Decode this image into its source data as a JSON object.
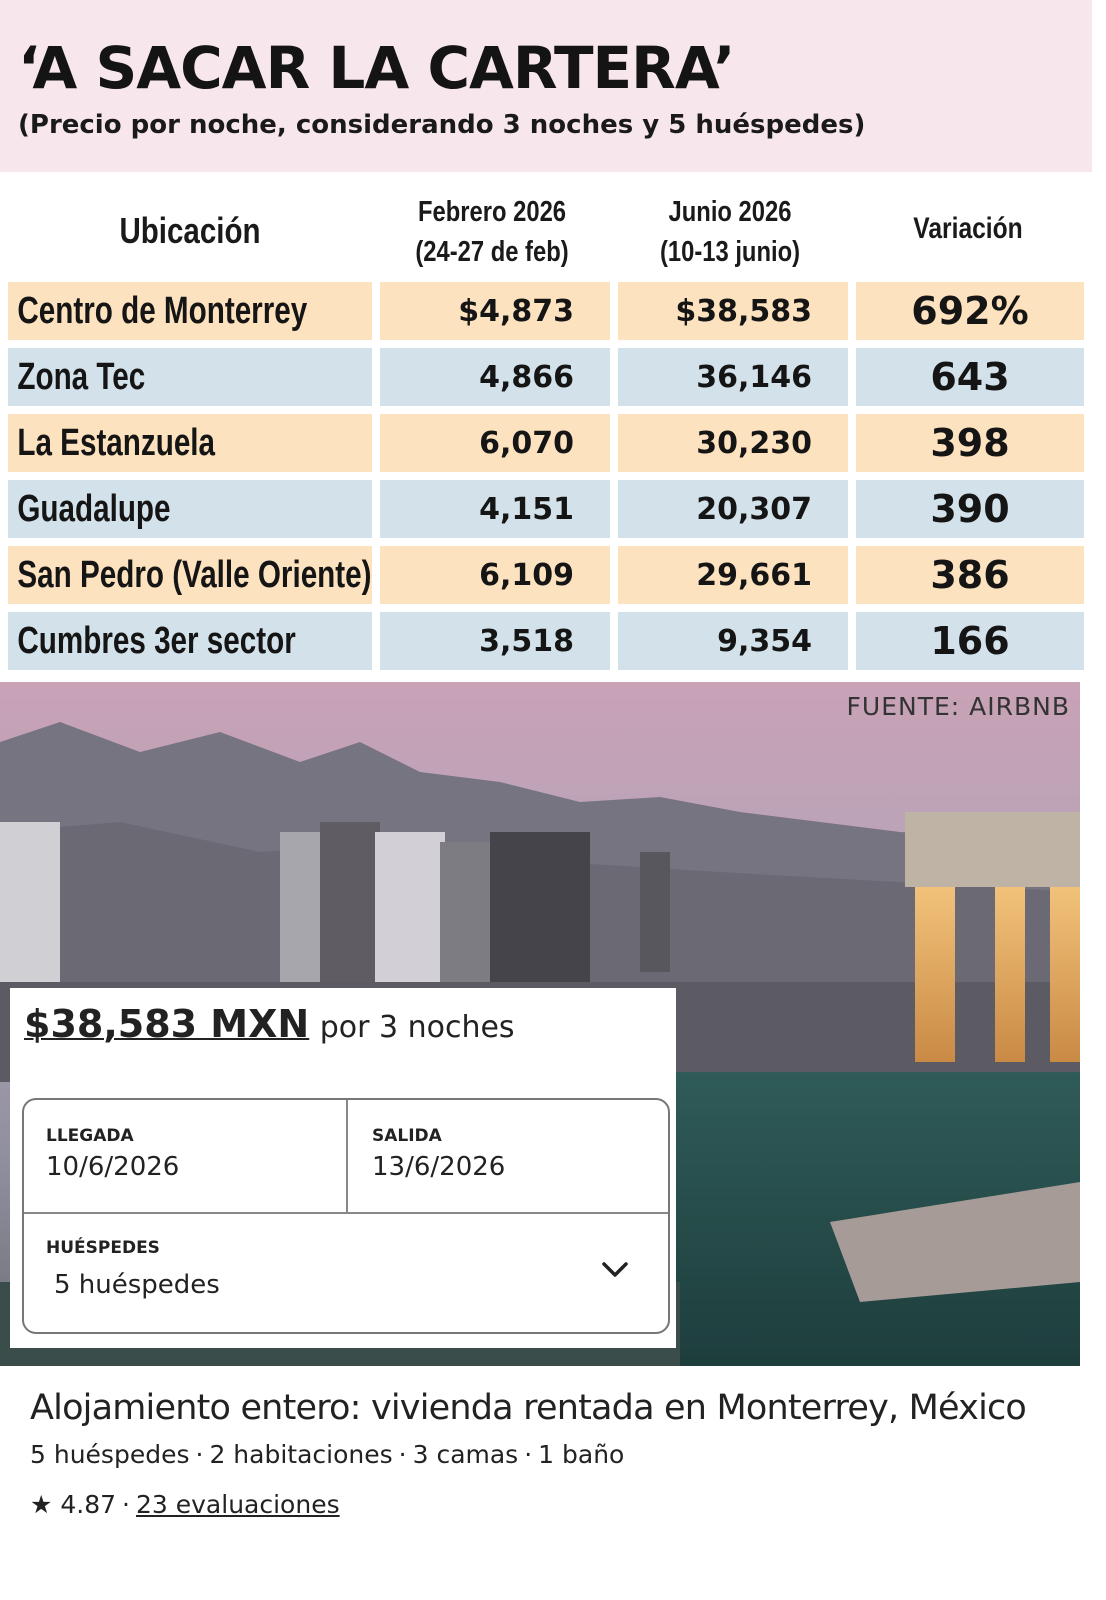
{
  "header": {
    "title": "‘A SACAR LA CARTERA’",
    "subtitle": "(Precio por noche, considerando 3 noches y 5 huéspedes)"
  },
  "table": {
    "columns": {
      "location": "Ubicación",
      "feb_line1": "Febrero 2026",
      "feb_line2": "(24-27 de feb)",
      "jun_line1": "Junio 2026",
      "jun_line2": "(10-13 junio)",
      "variation": "Variación"
    },
    "rows": [
      {
        "location": "Centro de Monterrey",
        "feb": "$4,873",
        "jun": "$38,583",
        "variation": "692%"
      },
      {
        "location": "Zona Tec",
        "feb": "4,866",
        "jun": "36,146",
        "variation": "643"
      },
      {
        "location": "La Estanzuela",
        "feb": "6,070",
        "jun": "30,230",
        "variation": "398"
      },
      {
        "location": "Guadalupe",
        "feb": "4,151",
        "jun": "20,307",
        "variation": "390"
      },
      {
        "location": "San Pedro (Valle Oriente)",
        "feb": "6,109",
        "jun": "29,661",
        "variation": "386"
      },
      {
        "location": "Cumbres 3er sector",
        "feb": "3,518",
        "jun": "9,354",
        "variation": "166"
      }
    ]
  },
  "source": "FUENTE: AIRBNB",
  "booking": {
    "price": "$38,583 MXN",
    "price_suffix": "por 3 noches",
    "checkin_label": "LLEGADA",
    "checkin_value": "10/6/2026",
    "checkout_label": "SALIDA",
    "checkout_value": "13/6/2026",
    "guests_label": "HUÉSPEDES",
    "guests_value": "5 huéspedes"
  },
  "listing": {
    "title": "Alojamiento entero: vivienda rentada en Monterrey, México",
    "details": [
      "5 huéspedes",
      "2 habitaciones",
      "3 camas",
      "1 baño"
    ],
    "rating": "4.87",
    "reviews": "23 evaluaciones"
  },
  "colors": {
    "header_bg": "#f7e6ec",
    "row_orange": "#fde2bf",
    "row_blue": "#d3e2ea"
  }
}
